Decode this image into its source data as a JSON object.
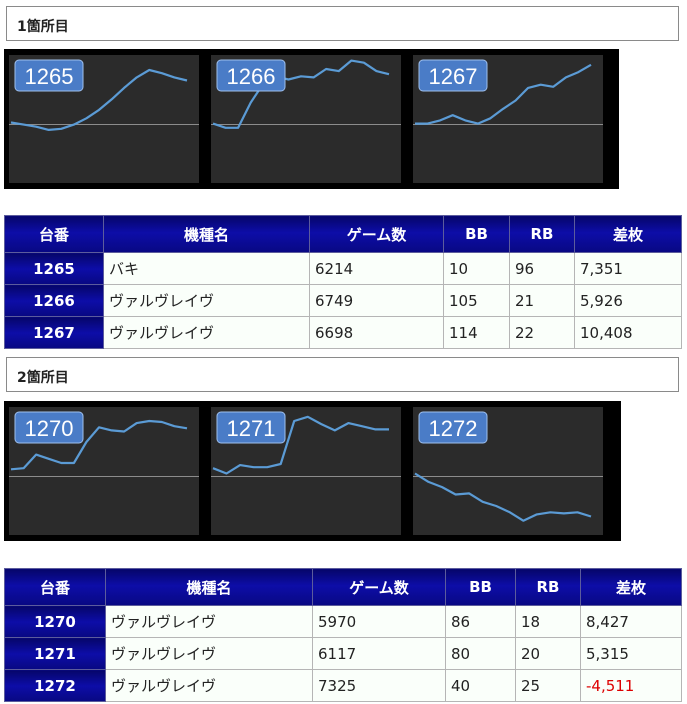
{
  "sections": [
    {
      "title": "1箇所目",
      "machines": [
        {
          "label": "1265",
          "values": [
            0.49,
            0.47,
            0.45,
            0.42,
            0.43,
            0.47,
            0.53,
            0.61,
            0.71,
            0.82,
            0.92,
            0.99,
            0.96,
            0.92,
            0.89
          ]
        },
        {
          "label": "1266",
          "values": [
            0.48,
            0.44,
            0.44,
            0.68,
            0.86,
            0.93,
            0.9,
            0.93,
            0.92,
            1.0,
            0.98,
            1.08,
            1.06,
            0.98,
            0.95
          ]
        },
        {
          "label": "1267",
          "values": [
            0.48,
            0.48,
            0.51,
            0.56,
            0.51,
            0.48,
            0.53,
            0.62,
            0.7,
            0.82,
            0.85,
            0.83,
            0.92,
            0.97,
            1.04
          ]
        }
      ],
      "table": {
        "headers": [
          "台番",
          "機種名",
          "ゲーム数",
          "BB",
          "RB",
          "差枚"
        ],
        "rows": [
          {
            "num": "1265",
            "name": "バキ",
            "games": "6214",
            "bb": "10",
            "rb": "96",
            "diff": "7,351"
          },
          {
            "num": "1266",
            "name": "ヴァルヴレイヴ",
            "games": "6749",
            "bb": "105",
            "rb": "21",
            "diff": "5,926"
          },
          {
            "num": "1267",
            "name": "ヴァルヴレイヴ",
            "games": "6698",
            "bb": "114",
            "rb": "22",
            "diff": "10,408"
          }
        ]
      }
    },
    {
      "title": "2箇所目",
      "machines": [
        {
          "label": "1270",
          "values": [
            0.54,
            0.55,
            0.68,
            0.64,
            0.6,
            0.6,
            0.8,
            0.94,
            0.91,
            0.9,
            0.98,
            1.0,
            0.99,
            0.95,
            0.93
          ]
        },
        {
          "label": "1271",
          "values": [
            0.55,
            0.5,
            0.58,
            0.56,
            0.56,
            0.59,
            1.0,
            1.04,
            0.97,
            0.91,
            0.98,
            0.95,
            0.92,
            0.92
          ]
        },
        {
          "label": "1272",
          "values": [
            0.5,
            0.42,
            0.37,
            0.3,
            0.31,
            0.23,
            0.19,
            0.13,
            0.05,
            0.11,
            0.13,
            0.12,
            0.13,
            0.09
          ]
        }
      ],
      "table": {
        "headers": [
          "台番",
          "機種名",
          "ゲーム数",
          "BB",
          "RB",
          "差枚"
        ],
        "rows": [
          {
            "num": "1270",
            "name": "ヴァルヴレイヴ",
            "games": "5970",
            "bb": "86",
            "rb": "18",
            "diff": "8,427"
          },
          {
            "num": "1271",
            "name": "ヴァルヴレイヴ",
            "games": "6117",
            "bb": "80",
            "rb": "20",
            "diff": "5,315"
          },
          {
            "num": "1272",
            "name": "ヴァルヴレイヴ",
            "games": "7325",
            "bb": "40",
            "rb": "25",
            "diff": "-4,511"
          }
        ]
      }
    }
  ],
  "colors": {
    "line": "#5b9bd5",
    "label_bg": "#4a7cc7",
    "chart_bg": "#2b2b2b",
    "zero_line": "#8c8c8c",
    "negative": "#dd0000"
  }
}
